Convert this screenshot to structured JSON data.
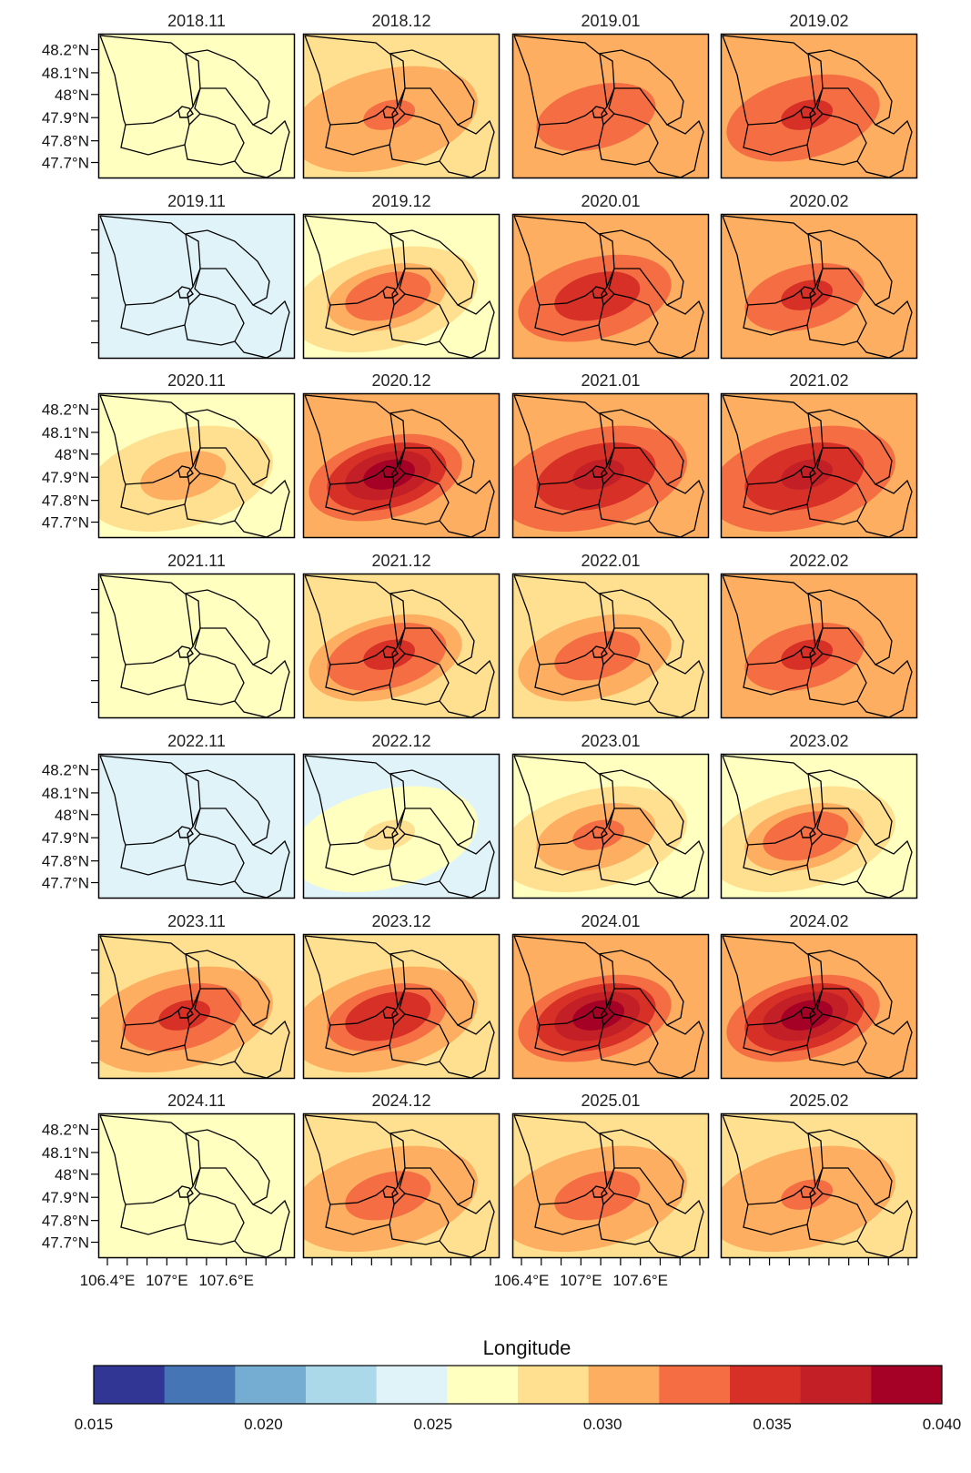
{
  "chart_data": {
    "type": "heatmap",
    "description_type": "small-multiples raster maps",
    "panels": [
      "2018.11",
      "2018.12",
      "2019.01",
      "2019.02",
      "2019.11",
      "2019.12",
      "2020.01",
      "2020.02",
      "2020.11",
      "2020.12",
      "2021.01",
      "2021.02",
      "2021.11",
      "2021.12",
      "2022.01",
      "2022.02",
      "2022.11",
      "2022.12",
      "2023.01",
      "2023.02",
      "2023.11",
      "2023.12",
      "2024.01",
      "2024.02",
      "2024.11",
      "2024.12",
      "2025.01",
      "2025.02"
    ],
    "panel_peak_values": [
      0.026,
      0.032,
      0.033,
      0.034,
      0.025,
      0.033,
      0.035,
      0.034,
      0.031,
      0.038,
      0.037,
      0.036,
      0.027,
      0.035,
      0.033,
      0.034,
      0.024,
      0.028,
      0.032,
      0.033,
      0.034,
      0.035,
      0.038,
      0.038,
      0.027,
      0.033,
      0.033,
      0.032
    ],
    "panel_background_values": [
      0.026,
      0.029,
      0.03,
      0.031,
      0.025,
      0.027,
      0.03,
      0.03,
      0.027,
      0.03,
      0.031,
      0.031,
      0.026,
      0.028,
      0.028,
      0.03,
      0.024,
      0.025,
      0.027,
      0.027,
      0.029,
      0.029,
      0.03,
      0.03,
      0.026,
      0.029,
      0.029,
      0.029
    ],
    "y_tick_labels": [
      "48.2°N",
      "48.1°N",
      "48°N",
      "47.9°N",
      "47.8°N",
      "47.7°N"
    ],
    "x_tick_labels": [
      "106.4°E",
      "107°E",
      "107.6°E"
    ],
    "colorbar": {
      "title": "Longitude",
      "range": [
        0.015,
        0.04
      ],
      "tick_labels": [
        "0.015",
        "0.020",
        "0.025",
        "0.030",
        "0.035",
        "0.040"
      ],
      "colors": [
        "#313695",
        "#4575b4",
        "#74add1",
        "#abd9e9",
        "#e0f3f8",
        "#ffffbf",
        "#fee090",
        "#fdae61",
        "#f46d43",
        "#d73027",
        "#c22026",
        "#a50026"
      ]
    }
  }
}
